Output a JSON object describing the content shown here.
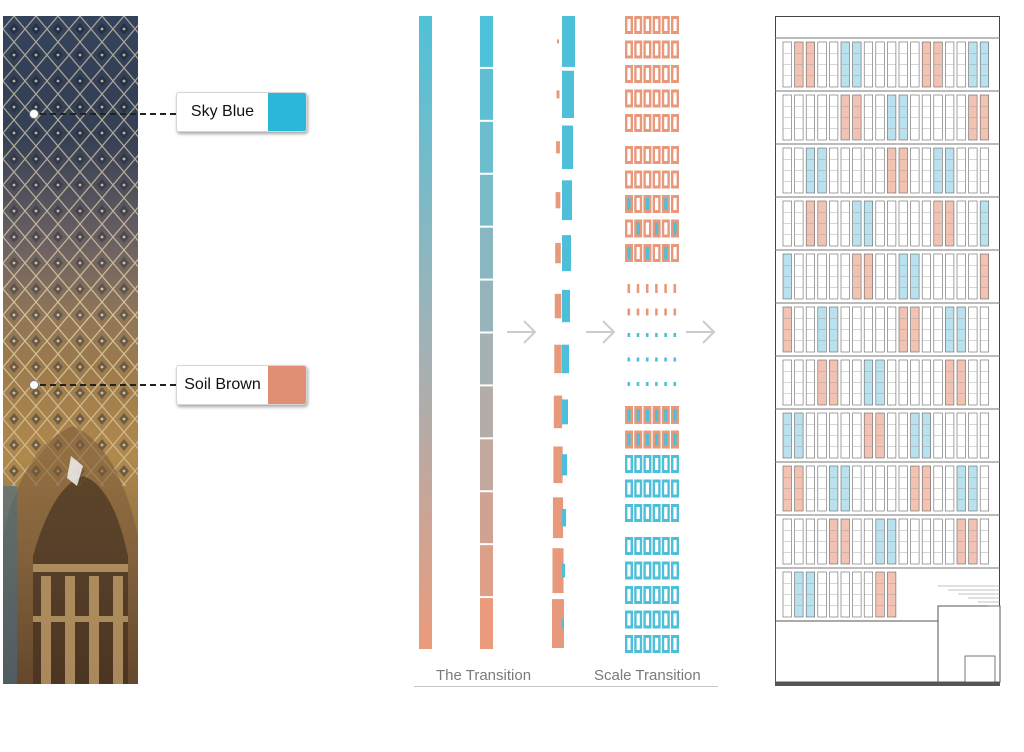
{
  "labels": {
    "sky_blue": "Sky Blue",
    "soil_brown": "Soil Brown",
    "transition": "The Transition",
    "scale_transition": "Scale Transition"
  },
  "colors": {
    "sky_blue": "#2bb7d9",
    "soil_brown": "#e08f74",
    "bar_blue": "#4dbfd8",
    "bar_brown": "#e8997c",
    "photo_blue": "#3e5577",
    "photo_gold": "#b8894b",
    "arrow": "#cccccc",
    "facade_line": "#555555"
  },
  "icons": {
    "arrow_1": "arrow-right-icon",
    "arrow_2": "arrow-right-icon",
    "arrow_3": "arrow-right-icon"
  }
}
